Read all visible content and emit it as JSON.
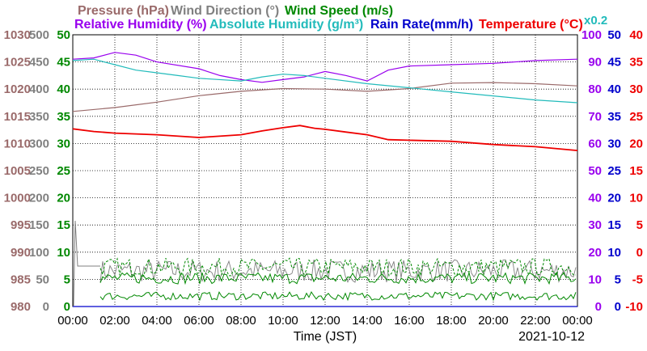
{
  "chart_data": {
    "type": "line",
    "legend_top": [
      {
        "text": "Pressure (hPa)",
        "color": "#9a6a6a"
      },
      {
        "text": "Wind Direction (°)",
        "color": "#808080"
      },
      {
        "text": "Wind Speed (m/s)",
        "color": "#008800"
      }
    ],
    "legend_bottom": [
      {
        "text": "Relative Humidity (%)",
        "color": "#9900ee"
      },
      {
        "text": "Absolute Humidity (g/m³)",
        "color": "#22bbbb"
      },
      {
        "text": "Rain Rate(mm/h)",
        "color": "#0000cc"
      },
      {
        "text": "Temperature (°C)",
        "color": "#ee0000"
      }
    ],
    "rain_scale_note": "x0.2",
    "xlabel": "Time (JST)",
    "date": "2021-10-12",
    "x_ticks": [
      "00:00",
      "02:00",
      "04:00",
      "06:00",
      "08:00",
      "10:00",
      "12:00",
      "14:00",
      "16:00",
      "18:00",
      "20:00",
      "22:00",
      "00:00"
    ],
    "xlim": [
      0,
      24
    ],
    "axes": {
      "pressure": {
        "color": "#9a6a6a",
        "ticks": [
          "1030",
          "1025",
          "1020",
          "1015",
          "1010",
          "1005",
          "1000",
          "995",
          "990",
          "985",
          "980"
        ],
        "ylim": [
          980,
          1030
        ]
      },
      "wind_direction": {
        "color": "#808080",
        "ticks": [
          "500",
          "450",
          "400",
          "350",
          "300",
          "250",
          "200",
          "150",
          "100",
          "50",
          "0"
        ],
        "ylim": [
          0,
          500
        ]
      },
      "wind_speed": {
        "color": "#008800",
        "ticks": [
          "50",
          "45",
          "40",
          "35",
          "30",
          "25",
          "20",
          "15",
          "10",
          "5",
          "0"
        ],
        "ylim": [
          0,
          50
        ]
      },
      "humidity": {
        "color": "#9900ee",
        "ticks": [
          "100",
          "90",
          "80",
          "70",
          "60",
          "50",
          "40",
          "30",
          "20",
          "10",
          "0"
        ],
        "ylim": [
          0,
          100
        ]
      },
      "rain": {
        "color": "#0000cc",
        "ticks": [
          "50",
          "45",
          "40",
          "35",
          "30",
          "25",
          "20",
          "15",
          "10",
          "5",
          "0"
        ],
        "ylim": [
          0,
          50
        ]
      },
      "temperature": {
        "color": "#ee0000",
        "ticks": [
          "40",
          "35",
          "30",
          "25",
          "20",
          "15",
          "10",
          "5",
          "0",
          "-5",
          "-10"
        ],
        "ylim": [
          -10,
          40
        ]
      }
    },
    "series": [
      {
        "name": "Pressure (hPa)",
        "axis": "pressure",
        "color": "#9a6a6a",
        "points": [
          [
            0,
            1015.9
          ],
          [
            2,
            1016.6
          ],
          [
            4,
            1017.6
          ],
          [
            6,
            1018.8
          ],
          [
            8,
            1019.6
          ],
          [
            10,
            1020.1
          ],
          [
            12,
            1020.0
          ],
          [
            14,
            1019.6
          ],
          [
            16,
            1020.1
          ],
          [
            18,
            1021.1
          ],
          [
            20,
            1021.2
          ],
          [
            22,
            1021.0
          ],
          [
            24,
            1020.6
          ]
        ]
      },
      {
        "name": "Relative Humidity (%)",
        "axis": "humidity",
        "color": "#9900ee",
        "points": [
          [
            0,
            91
          ],
          [
            1,
            91.5
          ],
          [
            2,
            93.5
          ],
          [
            3,
            92.5
          ],
          [
            4,
            90
          ],
          [
            6,
            87.5
          ],
          [
            7,
            85
          ],
          [
            8,
            83.5
          ],
          [
            9,
            82.5
          ],
          [
            10,
            83.5
          ],
          [
            11,
            84.5
          ],
          [
            12,
            86.5
          ],
          [
            13,
            85
          ],
          [
            14,
            83
          ],
          [
            15,
            87
          ],
          [
            16,
            88.5
          ],
          [
            18,
            89
          ],
          [
            20,
            89.5
          ],
          [
            22,
            90.5
          ],
          [
            24,
            91
          ]
        ]
      },
      {
        "name": "Absolute Humidity (g/m³)",
        "axis": "humidity",
        "color": "#22bbbb",
        "points": [
          [
            0,
            90.5
          ],
          [
            1,
            91
          ],
          [
            2,
            89
          ],
          [
            3,
            87
          ],
          [
            4,
            86
          ],
          [
            5,
            85
          ],
          [
            6,
            84
          ],
          [
            8,
            83
          ],
          [
            9,
            84.5
          ],
          [
            10,
            85.5
          ],
          [
            11,
            85
          ],
          [
            12,
            84
          ],
          [
            14,
            82
          ],
          [
            16,
            80.5
          ],
          [
            18,
            79
          ],
          [
            20,
            77.5
          ],
          [
            22,
            76
          ],
          [
            24,
            75
          ]
        ]
      },
      {
        "name": "Temperature (°C)",
        "axis": "temperature",
        "color": "#ee0000",
        "points": [
          [
            0,
            22.7
          ],
          [
            1,
            22.2
          ],
          [
            2,
            21.9
          ],
          [
            4,
            21.6
          ],
          [
            6,
            21.1
          ],
          [
            8,
            21.6
          ],
          [
            9,
            22.3
          ],
          [
            10,
            22.9
          ],
          [
            10.8,
            23.3
          ],
          [
            11.5,
            22.8
          ],
          [
            12,
            22.6
          ],
          [
            13,
            22.1
          ],
          [
            14,
            21.6
          ],
          [
            15,
            20.7
          ],
          [
            16,
            20.6
          ],
          [
            18,
            20.4
          ],
          [
            20,
            19.8
          ],
          [
            22,
            19.4
          ],
          [
            24,
            18.7
          ]
        ]
      },
      {
        "name": "Rain Rate(mm/h)",
        "axis": "rain",
        "color": "#0000cc",
        "points": [
          [
            0,
            0
          ],
          [
            24,
            0
          ]
        ]
      }
    ]
  }
}
